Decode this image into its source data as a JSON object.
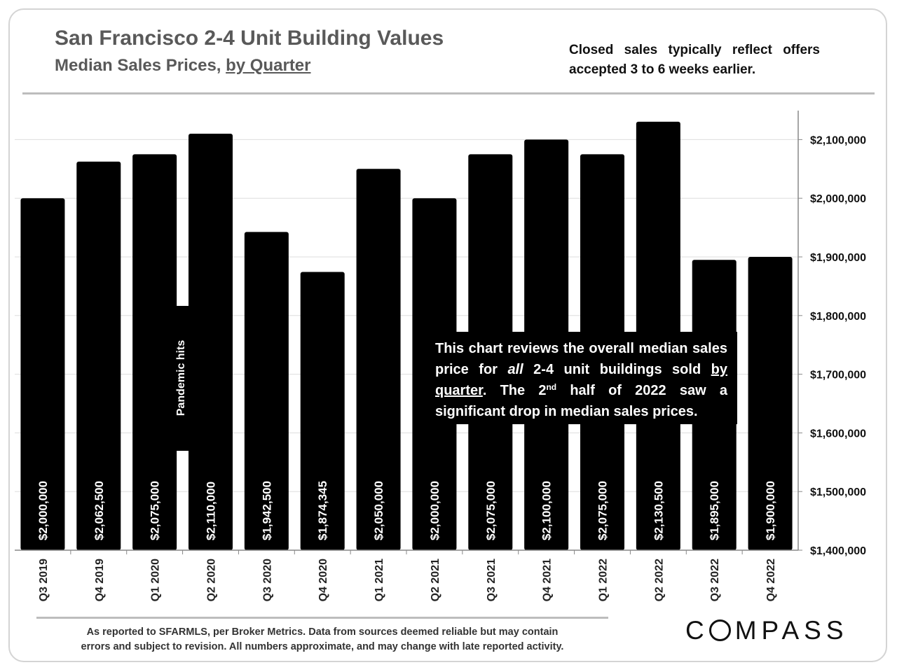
{
  "header": {
    "title": "San Francisco 2-4 Unit Building Values",
    "subtitle_prefix": "Median Sales Prices, ",
    "subtitle_underlined": "by Quarter",
    "note": "Closed sales typically reflect offers accepted 3 to 6 weeks earlier."
  },
  "annotation": {
    "p1": "This chart reviews the overall median sales price for ",
    "p2": "all",
    "p3": " 2-4 unit buildings sold ",
    "p4": "by quarter",
    "p5": ". The 2",
    "p6": "nd",
    "p7": " half of 2022 saw a significant drop in median sales prices."
  },
  "pandemic_label": "Pandemic hits",
  "footer": {
    "line1": "As reported to SFARMLS, per Broker Metrics. Data from sources deemed reliable but may contain",
    "line2": "errors and subject to revision. All numbers approximate, and may change with late reported activity."
  },
  "logo": {
    "rest": "MPASS"
  },
  "colors": {
    "bar": "#000000",
    "label": "#ffffff",
    "axis": "#888888",
    "grid": "#dddddd"
  },
  "chart_data": {
    "type": "bar",
    "categories": [
      "Q3 2019",
      "Q4 2019",
      "Q1 2020",
      "Q2 2020",
      "Q3 2020",
      "Q4 2020",
      "Q1 2021",
      "Q2 2021",
      "Q3 2021",
      "Q4 2021",
      "Q1 2022",
      "Q2 2022",
      "Q3 2022",
      "Q4 2022"
    ],
    "values": [
      2000000,
      2062500,
      2075000,
      2110000,
      1942500,
      1874345,
      2050000,
      2000000,
      2075000,
      2100000,
      2075000,
      2130500,
      1895000,
      1900000
    ],
    "value_labels": [
      "$2,000,000",
      "$2,062,500",
      "$2,075,000",
      "$2,110,000",
      "$1,942,500",
      "$1,874,345",
      "$2,050,000",
      "$2,000,000",
      "$2,075,000",
      "$2,100,000",
      "$2,075,000",
      "$2,130,500",
      "$1,895,000",
      "$1,900,000"
    ],
    "ylim": [
      1400000,
      2150000
    ],
    "yticks": [
      1400000,
      1500000,
      1600000,
      1700000,
      1800000,
      1900000,
      2000000,
      2100000
    ],
    "ytick_labels": [
      "$1,400,000",
      "$1,500,000",
      "$1,600,000",
      "$1,700,000",
      "$1,800,000",
      "$1,900,000",
      "$2,000,000",
      "$2,100,000"
    ],
    "y_axis_position": "right",
    "grid": true,
    "xlabel": "",
    "ylabel": ""
  }
}
